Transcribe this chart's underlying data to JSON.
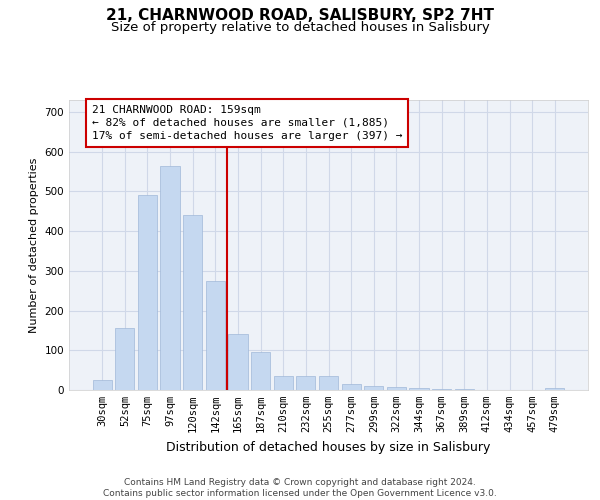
{
  "title": "21, CHARNWOOD ROAD, SALISBURY, SP2 7HT",
  "subtitle": "Size of property relative to detached houses in Salisbury",
  "xlabel": "Distribution of detached houses by size in Salisbury",
  "ylabel": "Number of detached properties",
  "categories": [
    "30sqm",
    "52sqm",
    "75sqm",
    "97sqm",
    "120sqm",
    "142sqm",
    "165sqm",
    "187sqm",
    "210sqm",
    "232sqm",
    "255sqm",
    "277sqm",
    "299sqm",
    "322sqm",
    "344sqm",
    "367sqm",
    "389sqm",
    "412sqm",
    "434sqm",
    "457sqm",
    "479sqm"
  ],
  "values": [
    25,
    155,
    490,
    565,
    440,
    275,
    140,
    95,
    35,
    35,
    35,
    15,
    10,
    8,
    5,
    3,
    2,
    1,
    1,
    1,
    5
  ],
  "bar_color": "#c5d8f0",
  "bar_edge_color": "#a0b8d8",
  "grid_color": "#d0d8e8",
  "background_color": "#eef2f8",
  "red_line_x": 5.5,
  "annotation_text": "21 CHARNWOOD ROAD: 159sqm\n← 82% of detached houses are smaller (1,885)\n17% of semi-detached houses are larger (397) →",
  "annotation_box_color": "#ffffff",
  "annotation_border_color": "#cc0000",
  "ylim": [
    0,
    730
  ],
  "yticks": [
    0,
    100,
    200,
    300,
    400,
    500,
    600,
    700
  ],
  "footer_text": "Contains HM Land Registry data © Crown copyright and database right 2024.\nContains public sector information licensed under the Open Government Licence v3.0.",
  "title_fontsize": 11,
  "subtitle_fontsize": 9.5,
  "xlabel_fontsize": 9,
  "ylabel_fontsize": 8,
  "tick_fontsize": 7.5,
  "annotation_fontsize": 8,
  "footer_fontsize": 6.5
}
